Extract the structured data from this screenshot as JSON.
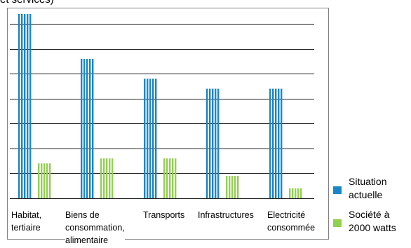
{
  "header": {
    "title_fragment": "et services)"
  },
  "chart_data": {
    "type": "bar",
    "categories": [
      [
        "Habitat,",
        "tertiaire"
      ],
      [
        "Biens de",
        "consommation,",
        "alimentaire"
      ],
      [
        "Transports"
      ],
      [
        "Infrastructures"
      ],
      [
        "Electricité",
        "consommée"
      ]
    ],
    "series": [
      {
        "name": "Situation actuelle",
        "values": [
          7.4,
          5.6,
          4.8,
          4.4,
          4.4
        ]
      },
      {
        "name": "Société à 2000 watts",
        "values": [
          1.4,
          1.6,
          1.6,
          0.9,
          0.4
        ]
      }
    ],
    "ylim": [
      0,
      7.4
    ],
    "grid": true,
    "colors": {
      "current": "#1a86c8",
      "target": "#92d050",
      "grid": "#1f1f1f"
    }
  },
  "legend": {
    "items": [
      {
        "lines": [
          "Situation",
          "actuelle"
        ],
        "color_key": "current"
      },
      {
        "lines": [
          "Société à",
          "2000 watts"
        ],
        "color_key": "target"
      }
    ]
  }
}
